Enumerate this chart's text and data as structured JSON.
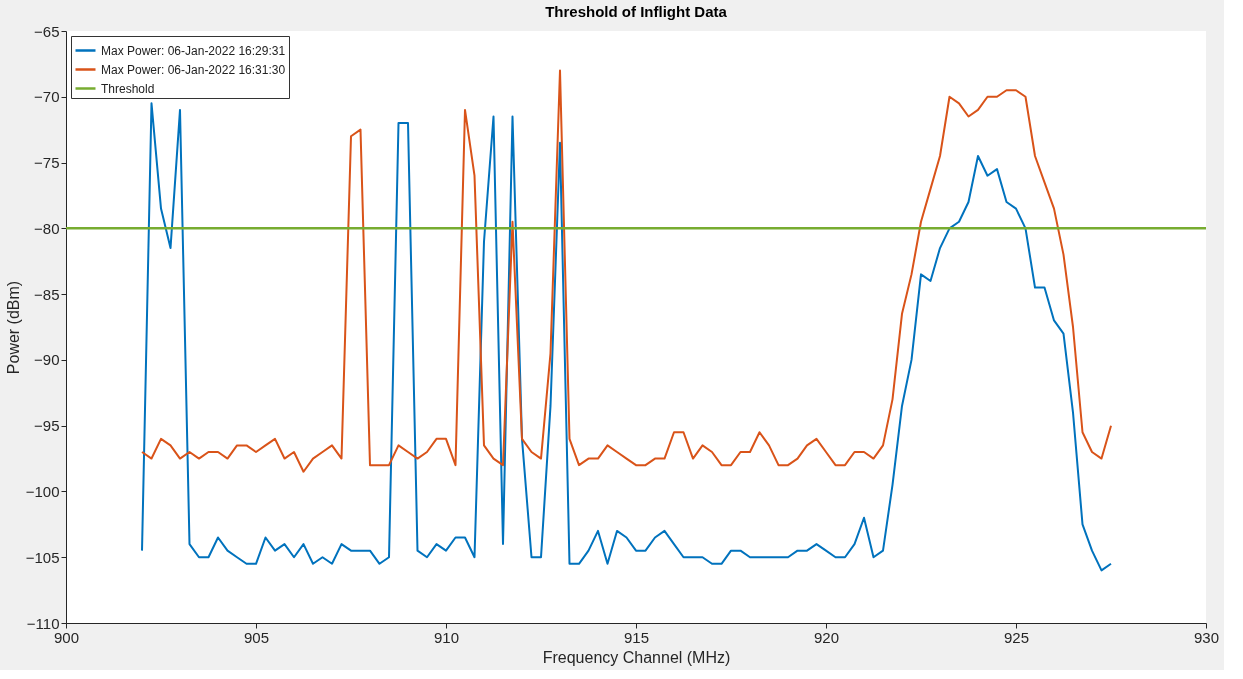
{
  "chart_data": {
    "type": "line",
    "title": "Threshold of Inflight Data",
    "xlabel": "Frequency Channel (MHz)",
    "ylabel": "Power (dBm)",
    "x": [
      902,
      902.25,
      902.5,
      902.75,
      903,
      903.25,
      903.5,
      903.75,
      904,
      904.25,
      904.5,
      904.75,
      905,
      905.25,
      905.5,
      905.75,
      906,
      906.25,
      906.5,
      906.75,
      907,
      907.25,
      907.5,
      907.75,
      908,
      908.25,
      908.5,
      908.75,
      909,
      909.25,
      909.5,
      909.75,
      910,
      910.25,
      910.5,
      910.75,
      911,
      911.25,
      911.5,
      911.75,
      912,
      912.25,
      912.5,
      912.75,
      913,
      913.25,
      913.5,
      913.75,
      914,
      914.25,
      914.5,
      914.75,
      915,
      915.25,
      915.5,
      915.75,
      916,
      916.25,
      916.5,
      916.75,
      917,
      917.25,
      917.5,
      917.75,
      918,
      918.25,
      918.5,
      918.75,
      919,
      919.25,
      919.5,
      919.75,
      920,
      920.25,
      920.5,
      920.75,
      921,
      921.25,
      921.5,
      921.75,
      922,
      922.25,
      922.5,
      922.75,
      923,
      923.25,
      923.5,
      923.75,
      924,
      924.25,
      924.5,
      924.75,
      925,
      925.25,
      925.5,
      925.75,
      926,
      926.25,
      926.5,
      926.75,
      927,
      927.25,
      927.5
    ],
    "series": [
      {
        "name": "Max Power: 06-Jan-2022 16:29:31",
        "color": "#0072bd",
        "values": [
          -104.5,
          -70.5,
          -78.5,
          -81.5,
          -71,
          -104,
          -105,
          -105,
          -103.5,
          -104.5,
          -105,
          -105.5,
          -105.5,
          -103.5,
          -104.5,
          -104,
          -105,
          -104,
          -105.5,
          -105,
          -105.5,
          -104,
          -104.5,
          -104.5,
          -104.5,
          -105.5,
          -105,
          -72,
          -72,
          -104.5,
          -105,
          -104,
          -104.5,
          -103.5,
          -103.5,
          -105,
          -81,
          -71.5,
          -104,
          -71.5,
          -96,
          -105,
          -105,
          -93.5,
          -73.5,
          -105.5,
          -105.5,
          -104.5,
          -103,
          -105.5,
          -103,
          -103.5,
          -104.5,
          -104.5,
          -103.5,
          -103,
          -104,
          -105,
          -105,
          -105,
          -105.5,
          -105.5,
          -104.5,
          -104.5,
          -105,
          -105,
          -105,
          -105,
          -105,
          -104.5,
          -104.5,
          -104,
          -104.5,
          -105,
          -105,
          -104,
          -102,
          -105,
          -104.5,
          -99.5,
          -93.5,
          -90,
          -83.5,
          -84,
          -81.5,
          -80,
          -79.5,
          -78,
          -74.5,
          -76,
          -75.5,
          -78,
          -78.5,
          -80,
          -84.5,
          -84.5,
          -87,
          -88,
          -94,
          -102.5,
          -104.5,
          -106,
          -105.5
        ]
      },
      {
        "name": "Max Power: 06-Jan-2022 16:31:30",
        "color": "#d95319",
        "values": [
          -97,
          -97.5,
          -96,
          -96.5,
          -97.5,
          -97,
          -97.5,
          -97,
          -97,
          -97.5,
          -96.5,
          -96.5,
          -97,
          -96.5,
          -96,
          -97.5,
          -97,
          -98.5,
          -97.5,
          -97,
          -96.5,
          -97.5,
          -73,
          -72.5,
          -98,
          -98,
          -98,
          -96.5,
          -97,
          -97.5,
          -97,
          -96,
          -96,
          -98,
          -71,
          -76,
          -96.5,
          -97.5,
          -98,
          -79.5,
          -96,
          -97,
          -97.5,
          -89.5,
          -68,
          -96,
          -98,
          -97.5,
          -97.5,
          -96.5,
          -97,
          -97.5,
          -98,
          -98,
          -97.5,
          -97.5,
          -95.5,
          -95.5,
          -97.5,
          -96.5,
          -97,
          -98,
          -98,
          -97,
          -97,
          -95.5,
          -96.5,
          -98,
          -98,
          -97.5,
          -96.5,
          -96,
          -97,
          -98,
          -98,
          -97,
          -97,
          -97.5,
          -96.5,
          -93,
          -86.5,
          -83.5,
          -79.5,
          -77,
          -74.5,
          -70,
          -70.5,
          -71.5,
          -71,
          -70,
          -70,
          -69.5,
          -69.5,
          -70,
          -74.5,
          -76.5,
          -78.5,
          -82,
          -87.5,
          -95.5,
          -97,
          -97.5,
          -95
        ]
      }
    ],
    "ref_lines": [
      {
        "axis": "y",
        "value": -80,
        "label": "Threshold",
        "color": "#77ac30"
      }
    ],
    "xlim": [
      900,
      930
    ],
    "xticks": [
      900,
      905,
      910,
      915,
      920,
      925,
      930
    ],
    "ylim": [
      -110,
      -65
    ],
    "yticks": [
      -110,
      -105,
      -100,
      -95,
      -90,
      -85,
      -80,
      -75,
      -70,
      -65
    ],
    "grid": false,
    "legend": "top left"
  }
}
